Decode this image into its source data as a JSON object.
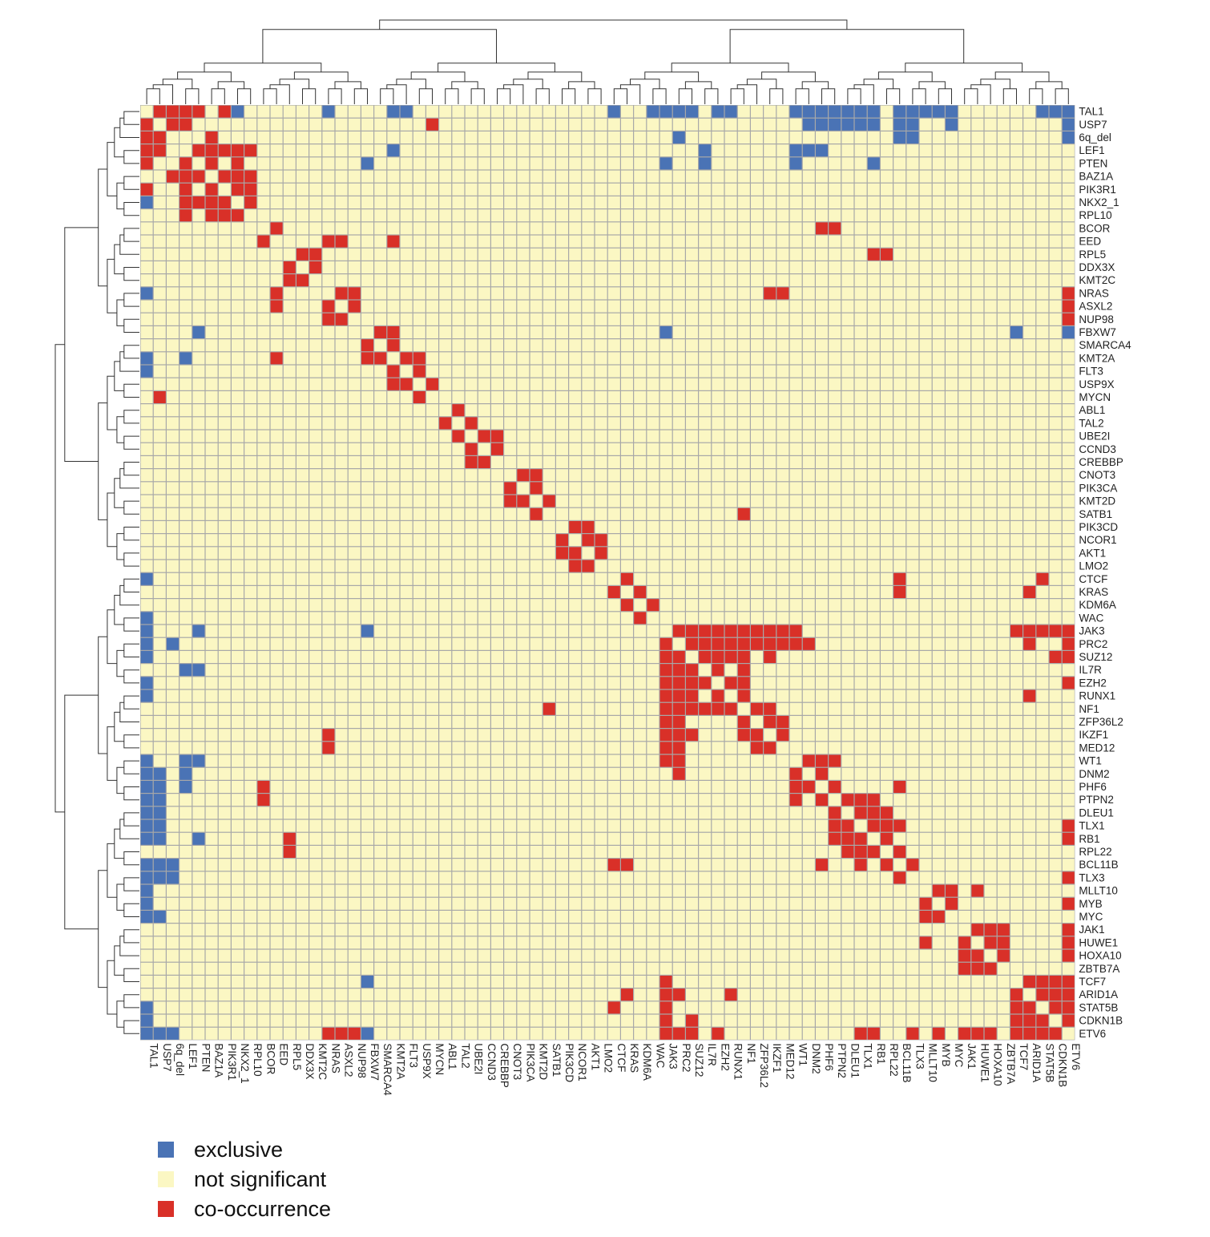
{
  "chart_data": {
    "type": "heatmap",
    "title": "",
    "xlabel": "",
    "ylabel": "",
    "genes": [
      "TAL1",
      "USP7",
      "6q_del",
      "LEF1",
      "PTEN",
      "BAZ1A",
      "PIK3R1",
      "NKX2_1",
      "RPL10",
      "BCOR",
      "EED",
      "RPL5",
      "DDX3X",
      "KMT2C",
      "NRAS",
      "ASXL2",
      "NUP98",
      "FBXW7",
      "SMARCA4",
      "KMT2A",
      "FLT3",
      "USP9X",
      "MYCN",
      "ABL1",
      "TAL2",
      "UBE2I",
      "CCND3",
      "CREBBP",
      "CNOT3",
      "PIK3CA",
      "KMT2D",
      "SATB1",
      "PIK3CD",
      "NCOR1",
      "AKT1",
      "LMO2",
      "CTCF",
      "KRAS",
      "KDM6A",
      "WAC",
      "JAK3",
      "PRC2",
      "SUZ12",
      "IL7R",
      "EZH2",
      "RUNX1",
      "NF1",
      "ZFP36L2",
      "IKZF1",
      "MED12",
      "WT1",
      "DNM2",
      "PHF6",
      "PTPN2",
      "DLEU1",
      "TLX1",
      "RB1",
      "RPL22",
      "BCL11B",
      "TLX3",
      "MLLT10",
      "MYB",
      "MYC",
      "JAK1",
      "HUWE1",
      "HOXA10",
      "ZBTB7A",
      "TCF7",
      "ARID1A",
      "STAT5B",
      "CDKN1B",
      "ETV6"
    ],
    "legend": {
      "position": "bottom-left",
      "entries": [
        {
          "label": "exclusive",
          "color": "#4a73b5"
        },
        {
          "label": "not significant",
          "color": "#fbf7c3"
        },
        {
          "label": "co-occurrence",
          "color": "#d93028"
        }
      ]
    },
    "pairs": {
      "exclusive": [
        [
          "TAL1",
          "NKX2_1"
        ],
        [
          "TAL1",
          "NRAS"
        ],
        [
          "TAL1",
          "KMT2A"
        ],
        [
          "TAL1",
          "FLT3"
        ],
        [
          "TAL1",
          "CTCF"
        ],
        [
          "TAL1",
          "WAC"
        ],
        [
          "TAL1",
          "JAK3"
        ],
        [
          "TAL1",
          "PRC2"
        ],
        [
          "TAL1",
          "SUZ12"
        ],
        [
          "TAL1",
          "EZH2"
        ],
        [
          "TAL1",
          "RUNX1"
        ],
        [
          "TAL1",
          "WT1"
        ],
        [
          "TAL1",
          "DNM2"
        ],
        [
          "TAL1",
          "PHF6"
        ],
        [
          "TAL1",
          "PTPN2"
        ],
        [
          "TAL1",
          "DLEU1"
        ],
        [
          "TAL1",
          "TLX1"
        ],
        [
          "TAL1",
          "RB1"
        ],
        [
          "TAL1",
          "BCL11B"
        ],
        [
          "TAL1",
          "TLX3"
        ],
        [
          "TAL1",
          "MLLT10"
        ],
        [
          "TAL1",
          "MYB"
        ],
        [
          "TAL1",
          "MYC"
        ],
        [
          "TAL1",
          "STAT5B"
        ],
        [
          "TAL1",
          "CDKN1B"
        ],
        [
          "TAL1",
          "ETV6"
        ],
        [
          "USP7",
          "DNM2"
        ],
        [
          "USP7",
          "PHF6"
        ],
        [
          "USP7",
          "PTPN2"
        ],
        [
          "USP7",
          "DLEU1"
        ],
        [
          "USP7",
          "TLX1"
        ],
        [
          "USP7",
          "RB1"
        ],
        [
          "USP7",
          "BCL11B"
        ],
        [
          "USP7",
          "TLX3"
        ],
        [
          "USP7",
          "MYC"
        ],
        [
          "USP7",
          "ETV6"
        ],
        [
          "6q_del",
          "BCL11B"
        ],
        [
          "6q_del",
          "TLX3"
        ],
        [
          "6q_del",
          "PRC2"
        ],
        [
          "6q_del",
          "ETV6"
        ],
        [
          "LEF1",
          "IL7R"
        ],
        [
          "LEF1",
          "DNM2"
        ],
        [
          "LEF1",
          "WT1"
        ],
        [
          "LEF1",
          "KMT2A"
        ],
        [
          "LEF1",
          "PHF6"
        ],
        [
          "PTEN",
          "JAK3"
        ],
        [
          "PTEN",
          "IL7R"
        ],
        [
          "PTEN",
          "FBXW7"
        ],
        [
          "PTEN",
          "RB1"
        ],
        [
          "PTEN",
          "WT1"
        ],
        [
          "FBXW7",
          "JAK3"
        ],
        [
          "FBXW7",
          "TCF7"
        ],
        [
          "FBXW7",
          "ETV6"
        ],
        [
          "FBXW7",
          "TCF7"
        ]
      ],
      "co-occurrence": [
        [
          "TAL1",
          "USP7"
        ],
        [
          "TAL1",
          "6q_del"
        ],
        [
          "TAL1",
          "LEF1"
        ],
        [
          "TAL1",
          "PTEN"
        ],
        [
          "TAL1",
          "PIK3R1"
        ],
        [
          "USP7",
          "6q_del"
        ],
        [
          "USP7",
          "LEF1"
        ],
        [
          "USP7",
          "MYCN"
        ],
        [
          "6q_del",
          "BAZ1A"
        ],
        [
          "LEF1",
          "BAZ1A"
        ],
        [
          "LEF1",
          "PIK3R1"
        ],
        [
          "LEF1",
          "RPL10"
        ],
        [
          "LEF1",
          "NKX2_1"
        ],
        [
          "LEF1",
          "PTEN"
        ],
        [
          "PTEN",
          "BAZ1A"
        ],
        [
          "PTEN",
          "NKX2_1"
        ],
        [
          "BAZ1A",
          "PIK3R1"
        ],
        [
          "BAZ1A",
          "RPL10"
        ],
        [
          "BAZ1A",
          "NKX2_1"
        ],
        [
          "PIK3R1",
          "NKX2_1"
        ],
        [
          "PIK3R1",
          "RPL10"
        ],
        [
          "NKX2_1",
          "RPL10"
        ],
        [
          "BCOR",
          "EED"
        ],
        [
          "BCOR",
          "PHF6"
        ],
        [
          "BCOR",
          "PTPN2"
        ],
        [
          "EED",
          "NRAS"
        ],
        [
          "EED",
          "ASXL2"
        ],
        [
          "RPL5",
          "DDX3X"
        ],
        [
          "RPL5",
          "KMT2C"
        ],
        [
          "DDX3X",
          "KMT2C"
        ],
        [
          "RPL5",
          "RPL22"
        ],
        [
          "RPL5",
          "RB1"
        ],
        [
          "NRAS",
          "ASXL2"
        ],
        [
          "NRAS",
          "NUP98"
        ],
        [
          "ASXL2",
          "NUP98"
        ],
        [
          "NRAS",
          "IKZF1"
        ],
        [
          "NRAS",
          "MED12"
        ],
        [
          "FBXW7",
          "SMARCA4"
        ],
        [
          "FBXW7",
          "KMT2A"
        ],
        [
          "SMARCA4",
          "KMT2A"
        ],
        [
          "KMT2A",
          "FLT3"
        ],
        [
          "FLT3",
          "USP9X"
        ],
        [
          "USP9X",
          "MYCN"
        ],
        [
          "ABL1",
          "TAL2"
        ],
        [
          "UBE2I",
          "CCND3"
        ],
        [
          "UBE2I",
          "CREBBP"
        ],
        [
          "CCND3",
          "CREBBP"
        ],
        [
          "CNOT3",
          "PIK3CA"
        ],
        [
          "CNOT3",
          "KMT2D"
        ],
        [
          "PIK3CA",
          "KMT2D"
        ],
        [
          "KMT2D",
          "SATB1"
        ],
        [
          "PIK3CD",
          "NCOR1"
        ],
        [
          "PIK3CD",
          "AKT1"
        ],
        [
          "NCOR1",
          "LMO2"
        ],
        [
          "AKT1",
          "LMO2"
        ],
        [
          "NCOR1",
          "AKT1"
        ],
        [
          "CTCF",
          "KRAS"
        ],
        [
          "KRAS",
          "KDM6A"
        ],
        [
          "KDM6A",
          "WAC"
        ],
        [
          "CTCF",
          "BCL11B"
        ],
        [
          "KRAS",
          "BCL11B"
        ],
        [
          "JAK3",
          "PRC2"
        ],
        [
          "JAK3",
          "SUZ12"
        ],
        [
          "JAK3",
          "IL7R"
        ],
        [
          "JAK3",
          "EZH2"
        ],
        [
          "JAK3",
          "RUNX1"
        ],
        [
          "JAK3",
          "NF1"
        ],
        [
          "JAK3",
          "ZFP36L2"
        ],
        [
          "JAK3",
          "IKZF1"
        ],
        [
          "JAK3",
          "MED12"
        ],
        [
          "JAK3",
          "WT1"
        ],
        [
          "PRC2",
          "SUZ12"
        ],
        [
          "PRC2",
          "IL7R"
        ],
        [
          "PRC2",
          "EZH2"
        ],
        [
          "PRC2",
          "RUNX1"
        ],
        [
          "PRC2",
          "NF1"
        ],
        [
          "PRC2",
          "ZFP36L2"
        ],
        [
          "PRC2",
          "IKZF1"
        ],
        [
          "PRC2",
          "MED12"
        ],
        [
          "PRC2",
          "WT1"
        ],
        [
          "PRC2",
          "DNM2"
        ],
        [
          "SUZ12",
          "IL7R"
        ],
        [
          "SUZ12",
          "EZH2"
        ],
        [
          "SUZ12",
          "RUNX1"
        ],
        [
          "SUZ12",
          "NF1"
        ],
        [
          "SUZ12",
          "IKZF1"
        ],
        [
          "IL7R",
          "EZH2"
        ],
        [
          "IL7R",
          "NF1"
        ],
        [
          "EZH2",
          "RUNX1"
        ],
        [
          "EZH2",
          "NF1"
        ],
        [
          "RUNX1",
          "NF1"
        ],
        [
          "NF1",
          "ZFP36L2"
        ],
        [
          "NF1",
          "IKZF1"
        ],
        [
          "ZFP36L2",
          "IKZF1"
        ],
        [
          "ZFP36L2",
          "MED12"
        ],
        [
          "IKZF1",
          "MED12"
        ],
        [
          "WT1",
          "DNM2"
        ],
        [
          "WT1",
          "PHF6"
        ],
        [
          "WT1",
          "PTPN2"
        ],
        [
          "DNM2",
          "PHF6"
        ],
        [
          "PHF6",
          "PTPN2"
        ],
        [
          "PTPN2",
          "DLEU1"
        ],
        [
          "PTPN2",
          "TLX1"
        ],
        [
          "PTPN2",
          "RB1"
        ],
        [
          "DLEU1",
          "TLX1"
        ],
        [
          "DLEU1",
          "RB1"
        ],
        [
          "DLEU1",
          "RPL22"
        ],
        [
          "TLX1",
          "RB1"
        ],
        [
          "TLX1",
          "RPL22"
        ],
        [
          "RB1",
          "RPL22"
        ],
        [
          "RPL22",
          "BCL11B"
        ],
        [
          "BCL11B",
          "TLX3"
        ],
        [
          "TLX1",
          "BCL11B"
        ],
        [
          "PHF6",
          "BCL11B"
        ],
        [
          "MLLT10",
          "MYB"
        ],
        [
          "MLLT10",
          "MYC"
        ],
        [
          "MYB",
          "MYC"
        ],
        [
          "MLLT10",
          "HUWE1"
        ],
        [
          "JAK1",
          "HUWE1"
        ],
        [
          "JAK1",
          "HOXA10"
        ],
        [
          "JAK1",
          "ZBTB7A"
        ],
        [
          "HUWE1",
          "HOXA10"
        ],
        [
          "HUWE1",
          "ZBTB7A"
        ],
        [
          "HOXA10",
          "ZBTB7A"
        ],
        [
          "TCF7",
          "ARID1A"
        ],
        [
          "TCF7",
          "STAT5B"
        ],
        [
          "TCF7",
          "CDKN1B"
        ],
        [
          "TCF7",
          "ETV6"
        ],
        [
          "ARID1A",
          "STAT5B"
        ],
        [
          "ARID1A",
          "CDKN1B"
        ],
        [
          "ARID1A",
          "ETV6"
        ],
        [
          "STAT5B",
          "CDKN1B"
        ],
        [
          "STAT5B",
          "ETV6"
        ],
        [
          "CDKN1B",
          "ETV6"
        ],
        [
          "NRAS",
          "ETV6"
        ],
        [
          "ASXL2",
          "ETV6"
        ],
        [
          "NUP98",
          "ETV6"
        ],
        [
          "JAK3",
          "ETV6"
        ],
        [
          "PRC2",
          "ETV6"
        ],
        [
          "SUZ12",
          "ETV6"
        ],
        [
          "RB1",
          "ETV6"
        ],
        [
          "TLX3",
          "ETV6"
        ],
        [
          "MYB",
          "ETV6"
        ],
        [
          "JAK1",
          "ETV6"
        ],
        [
          "HUWE1",
          "ETV6"
        ],
        [
          "HOXA10",
          "ETV6"
        ],
        [
          "TLX1",
          "ETV6"
        ],
        [
          "CTCF",
          "STAT5B"
        ],
        [
          "KRAS",
          "ARID1A"
        ],
        [
          "JAK3",
          "STAT5B"
        ],
        [
          "JAK3",
          "TCF7"
        ],
        [
          "JAK3",
          "ARID1A"
        ],
        [
          "JAK3",
          "CDKN1B"
        ],
        [
          "SUZ12",
          "CDKN1B"
        ],
        [
          "EZH2",
          "ETV6"
        ],
        [
          "RUNX1",
          "ARID1A"
        ],
        [
          "PRC2",
          "ARID1A"
        ],
        [
          "BCOR",
          "EED"
        ],
        [
          "EED",
          "KMT2A"
        ],
        [
          "KMT2A",
          "USP9X"
        ],
        [
          "TAL2",
          "UBE2I"
        ],
        [
          "SATB1",
          "NF1"
        ]
      ]
    },
    "dendrogram": "hierarchical clustering of genes (row and column)"
  }
}
